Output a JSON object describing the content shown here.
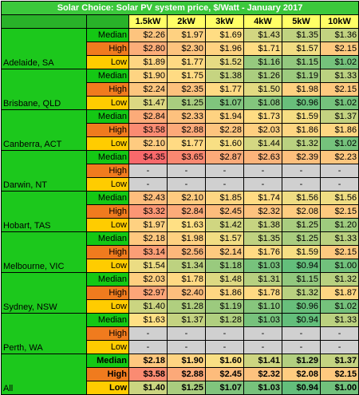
{
  "chart_data": {
    "type": "table",
    "title": "Solar Choice: Solar PV system price, $/Watt - January 2017",
    "columns": [
      "1.5kW",
      "2kW",
      "3kW",
      "4kW",
      "5kW",
      "10kW"
    ],
    "metrics": [
      "Median",
      "High",
      "Low"
    ],
    "colors": {
      "title_bg": "#3cc83c",
      "header_bg": "#ffff66",
      "city_bg": "#1cc81c",
      "median_bg": "#14c814",
      "high_bg": "#f07b1e",
      "low_bg": "#ffcc00",
      "value_low": "#63be7b",
      "value_mid": "#ffe084",
      "value_high": "#f8696b",
      "missing_bg": "#d0d0d0"
    },
    "rows": [
      {
        "city": "Adelaide, SA",
        "median": [
          "$2.26",
          "$1.97",
          "$1.69",
          "$1.43",
          "$1.35",
          "$1.36"
        ],
        "high": [
          "$2.80",
          "$2.30",
          "$1.96",
          "$1.71",
          "$1.57",
          "$2.15"
        ],
        "low": [
          "$1.89",
          "$1.77",
          "$1.52",
          "$1.16",
          "$1.15",
          "$1.02"
        ]
      },
      {
        "city": "Brisbane, QLD",
        "median": [
          "$1.90",
          "$1.75",
          "$1.38",
          "$1.26",
          "$1.19",
          "$1.33"
        ],
        "high": [
          "$2.24",
          "$2.35",
          "$1.77",
          "$1.50",
          "$1.98",
          "$2.15"
        ],
        "low": [
          "$1.47",
          "$1.25",
          "$1.07",
          "$1.08",
          "$0.96",
          "$1.02"
        ]
      },
      {
        "city": "Canberra, ACT",
        "median": [
          "$2.84",
          "$2.33",
          "$1.94",
          "$1.73",
          "$1.59",
          "$1.37"
        ],
        "high": [
          "$3.58",
          "$2.88",
          "$2.28",
          "$2.03",
          "$1.86",
          "$1.86"
        ],
        "low": [
          "$2.10",
          "$1.77",
          "$1.60",
          "$1.44",
          "$1.32",
          "$1.02"
        ]
      },
      {
        "city": "Darwin, NT",
        "median": [
          "$4.35",
          "$3.65",
          "$2.87",
          "$2.63",
          "$2.39",
          "$2.23"
        ],
        "high": [
          "-",
          "-",
          "-",
          "-",
          "-",
          "-"
        ],
        "low": [
          "-",
          "-",
          "-",
          "-",
          "-",
          "-"
        ]
      },
      {
        "city": "Hobart, TAS",
        "median": [
          "$2.43",
          "$2.10",
          "$1.85",
          "$1.74",
          "$1.56",
          "$1.56"
        ],
        "high": [
          "$3.32",
          "$2.84",
          "$2.45",
          "$2.32",
          "$2.08",
          "$2.15"
        ],
        "low": [
          "$1.97",
          "$1.63",
          "$1.42",
          "$1.38",
          "$1.25",
          "$1.20"
        ]
      },
      {
        "city": "Melbourne, VIC",
        "median": [
          "$2.18",
          "$1.98",
          "$1.57",
          "$1.35",
          "$1.25",
          "$1.33"
        ],
        "high": [
          "$3.14",
          "$2.56",
          "$2.14",
          "$1.76",
          "$1.59",
          "$2.15"
        ],
        "low": [
          "$1.54",
          "$1.34",
          "$1.18",
          "$1.03",
          "$0.94",
          "$1.00"
        ]
      },
      {
        "city": "Sydney, NSW",
        "median": [
          "$2.03",
          "$1.78",
          "$1.48",
          "$1.31",
          "$1.15",
          "$1.32"
        ],
        "high": [
          "$2.97",
          "$2.40",
          "$1.86",
          "$1.78",
          "$1.32",
          "$1.87"
        ],
        "low": [
          "$1.40",
          "$1.28",
          "$1.19",
          "$1.10",
          "$0.96",
          "$1.02"
        ]
      },
      {
        "city": "Perth, WA",
        "median": [
          "$1.63",
          "$1.37",
          "$1.28",
          "$1.03",
          "$0.94",
          "$1.33"
        ],
        "high": [
          "-",
          "-",
          "-",
          "-",
          "-",
          "-"
        ],
        "low": [
          "-",
          "-",
          "-",
          "-",
          "-",
          "-"
        ]
      },
      {
        "city": "All",
        "bold": true,
        "median": [
          "$2.18",
          "$1.90",
          "$1.60",
          "$1.41",
          "$1.29",
          "$1.37"
        ],
        "high": [
          "$3.58",
          "$2.88",
          "$2.45",
          "$2.32",
          "$2.08",
          "$2.15"
        ],
        "low": [
          "$1.40",
          "$1.25",
          "$1.07",
          "$1.03",
          "$0.94",
          "$1.00"
        ]
      }
    ]
  }
}
